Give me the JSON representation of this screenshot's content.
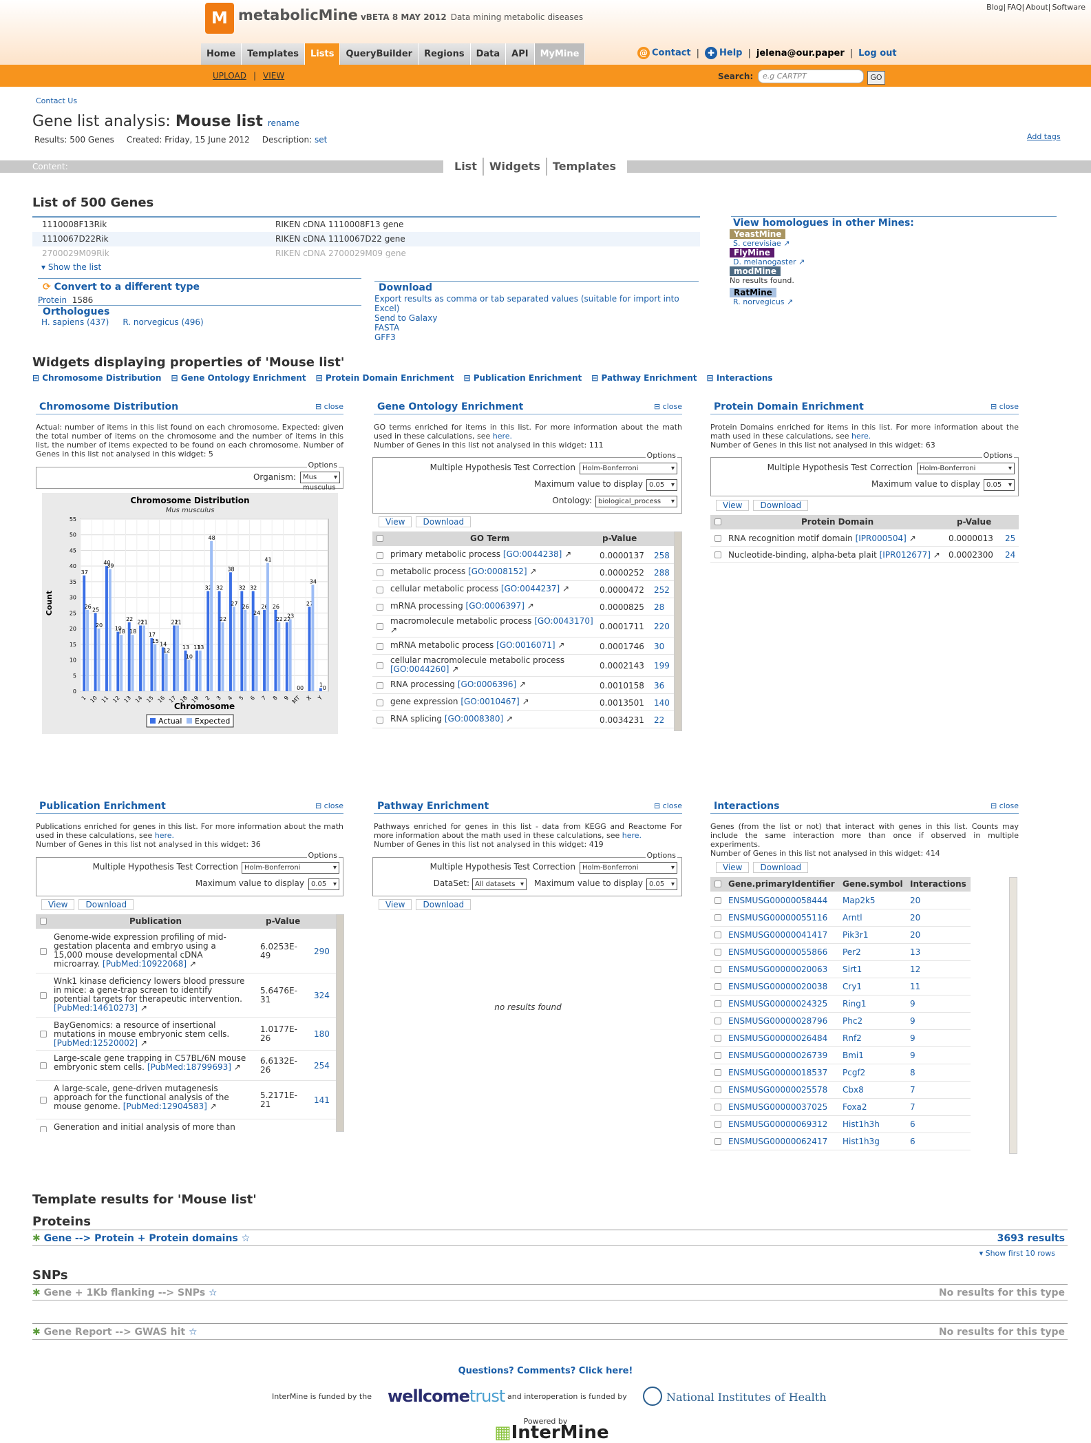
{
  "header": {
    "logo_text": "M",
    "brand": "metabolicMine",
    "version": "vBETA 8 MAY 2012",
    "tagline": "Data mining metabolic diseases",
    "top_links": [
      "Blog",
      "FAQ",
      "About",
      "Software"
    ],
    "tabs": [
      "Home",
      "Templates",
      "Lists",
      "QueryBuilder",
      "Regions",
      "Data",
      "API",
      "MyMine"
    ],
    "active_tab": "Lists",
    "contact": "Contact",
    "help": "Help",
    "user": "jelena@our.paper",
    "logout": "Log out",
    "sub_links": [
      "UPLOAD",
      "VIEW"
    ],
    "search_label": "Search:",
    "search_placeholder": "e.g CARTPT",
    "go": "GO"
  },
  "page": {
    "contact_us": "Contact Us",
    "title_prefix": "Gene list analysis: ",
    "title_name": "Mouse list",
    "rename": "rename",
    "results": "Results: 500 Genes",
    "created": "Created: Friday, 15 June 2012",
    "description_label": "Description:",
    "description_link": "set",
    "add_tags": "Add tags",
    "content_label": "Content:",
    "content_tabs": [
      "List",
      "Widgets",
      "Templates"
    ]
  },
  "list": {
    "heading": "List of 500 Genes",
    "rows": [
      {
        "id": "1110008F13Rik",
        "name": "RIKEN cDNA 1110008F13 gene"
      },
      {
        "id": "1110067D22Rik",
        "name": "RIKEN cDNA 1110067D22 gene"
      },
      {
        "id": "2700029M09Rik",
        "name": "RIKEN cDNA 2700029M09 gene"
      }
    ],
    "show_list": "Show the list",
    "convert_heading": "Convert to a different type",
    "convert_item": "Protein",
    "convert_count": "1586",
    "orthologues_heading": "Orthologues",
    "orthologues": [
      "H. sapiens (437)",
      "R. norvegicus (496)"
    ],
    "download_heading": "Download",
    "download_links": [
      "Export results as comma or tab separated values (suitable for import into Excel)",
      "Send to Galaxy",
      "FASTA",
      "GFF3"
    ],
    "homologues_heading": "View homologues in other Mines:",
    "mines": [
      {
        "name": "YeastMine",
        "color": "#a89461",
        "link": "S. cerevisiae"
      },
      {
        "name": "FlyMine",
        "color": "#5c1a6e",
        "link": "D. melanogaster"
      },
      {
        "name": "modMine",
        "color": "#4f6c84",
        "link": "No results found."
      },
      {
        "name": "RatMine",
        "color": "#aac3e3",
        "link": "R. norvegicus"
      }
    ]
  },
  "widgets": {
    "heading": "Widgets displaying properties of 'Mouse list'",
    "nav": [
      "Chromosome Distribution",
      "Gene Ontology Enrichment",
      "Protein Domain Enrichment",
      "Publication Enrichment",
      "Pathway Enrichment",
      "Interactions"
    ],
    "close": "close",
    "options": "Options",
    "view": "View",
    "download": "Download",
    "mhtc": "Multiple Hypothesis Test Correction",
    "holm": "Holm-Bonferroni",
    "maxval": "Maximum value to display",
    "maxsel": "0.05",
    "pvalue": "p-Value",
    "chrom": {
      "title": "Chromosome Distribution",
      "desc": "Actual: number of items in this list found on each chromosome. Expected: given the total number of items on the chromosome and the number of items in this list, the number of items expected to be found on each chromosome. Number of Genes in this list not analysed in this widget: 5",
      "organism_label": "Organism:",
      "organism": "Mus musculus"
    },
    "go": {
      "title": "Gene Ontology Enrichment",
      "desc_pre": "GO terms enriched for items in this list. For more information about the math used in these calculations, see ",
      "here": "here.",
      "desc_post": "Number of Genes in this list not analysed in this widget: 111",
      "ontology_label": "Ontology:",
      "ontology": "biological_process",
      "col": "GO Term",
      "rows": [
        {
          "t": "primary metabolic process",
          "id": "[GO:0044238]",
          "p": "0.0000137",
          "n": "258"
        },
        {
          "t": "metabolic process",
          "id": "[GO:0008152]",
          "p": "0.0000252",
          "n": "288"
        },
        {
          "t": "cellular metabolic process",
          "id": "[GO:0044237]",
          "p": "0.0000472",
          "n": "252"
        },
        {
          "t": "mRNA processing",
          "id": "[GO:0006397]",
          "p": "0.0000825",
          "n": "28"
        },
        {
          "t": "macromolecule metabolic process",
          "id": "[GO:0043170]",
          "p": "0.0001711",
          "n": "220"
        },
        {
          "t": "mRNA metabolic process",
          "id": "[GO:0016071]",
          "p": "0.0001746",
          "n": "30"
        },
        {
          "t": "cellular macromolecule metabolic process",
          "id": "[GO:0044260]",
          "p": "0.0002143",
          "n": "199"
        },
        {
          "t": "RNA processing",
          "id": "[GO:0006396]",
          "p": "0.0010158",
          "n": "36"
        },
        {
          "t": "gene expression",
          "id": "[GO:0010467]",
          "p": "0.0013501",
          "n": "140"
        },
        {
          "t": "RNA splicing",
          "id": "[GO:0008380]",
          "p": "0.0034231",
          "n": "22"
        }
      ]
    },
    "pd": {
      "title": "Protein Domain Enrichment",
      "desc": "Protein Domains enriched for items in this list. For more information about the math used in these calculations, see ",
      "here": "here.",
      "desc_post": "Number of Genes in this list not analysed in this widget: 63",
      "col": "Protein Domain",
      "rows": [
        {
          "t": "RNA recognition motif domain",
          "id": "[IPR000504]",
          "p": "0.0000013",
          "n": "25"
        },
        {
          "t": "Nucleotide-binding, alpha-beta plait",
          "id": "[IPR012677]",
          "p": "0.0002300",
          "n": "24"
        }
      ]
    },
    "pub": {
      "title": "Publication Enrichment",
      "desc": "Publications enriched for genes in this list. For more information about the math used in these calculations, see ",
      "here": "here.",
      "desc_post": "Number of Genes in this list not analysed in this widget: 36",
      "col": "Publication",
      "rows": [
        {
          "t": "Genome-wide expression profiling of mid-gestation placenta and embryo using a 15,000 mouse developmental cDNA microarray.",
          "id": "[PubMed:10922068]",
          "p": "6.0253E-49",
          "n": "290"
        },
        {
          "t": "Wnk1 kinase deficiency lowers blood pressure in mice: a gene-trap screen to identify potential targets for therapeutic intervention.",
          "id": "[PubMed:14610273]",
          "p": "5.6476E-31",
          "n": "324"
        },
        {
          "t": "BayGenomics: a resource of insertional mutations in mouse embryonic stem cells.",
          "id": "[PubMed:12520002]",
          "p": "1.0177E-26",
          "n": "180"
        },
        {
          "t": "Large-scale gene trapping in C57BL/6N mouse embryonic stem cells.",
          "id": "[PubMed:18799693]",
          "p": "6.6132E-26",
          "n": "254"
        },
        {
          "t": "A large-scale, gene-driven mutagenesis approach for the functional analysis of the mouse genome.",
          "id": "[PubMed:12904583]",
          "p": "5.2171E-21",
          "n": "141"
        },
        {
          "t": "Generation and initial analysis of more than",
          "id": "",
          "p": "",
          "n": ""
        }
      ]
    },
    "path": {
      "title": "Pathway Enrichment",
      "desc": "Pathways enriched for genes in this list - data from KEGG and Reactome For more information about the math used in these calculations, see ",
      "here": "here.",
      "desc_post": "Number of Genes in this list not analysed in this widget: 419",
      "dataset_label": "DataSet:",
      "dataset": "All datasets",
      "no_results": "no results found"
    },
    "inter": {
      "title": "Interactions",
      "desc": "Genes (from the list or not) that interact with genes in this list. Counts may include the same interaction more than once if observed in multiple experiments.",
      "desc_post": "Number of Genes in this list not analysed in this widget: 414",
      "cols": [
        "Gene.primaryIdentifier",
        "Gene.symbol",
        "Interactions"
      ],
      "rows": [
        [
          "ENSMUSG00000058444",
          "Map2k5",
          "20"
        ],
        [
          "ENSMUSG00000055116",
          "Arntl",
          "20"
        ],
        [
          "ENSMUSG00000041417",
          "Pik3r1",
          "20"
        ],
        [
          "ENSMUSG00000055866",
          "Per2",
          "13"
        ],
        [
          "ENSMUSG00000020063",
          "Sirt1",
          "12"
        ],
        [
          "ENSMUSG00000020038",
          "Cry1",
          "11"
        ],
        [
          "ENSMUSG00000024325",
          "Ring1",
          "9"
        ],
        [
          "ENSMUSG00000028796",
          "Phc2",
          "9"
        ],
        [
          "ENSMUSG00000026484",
          "Rnf2",
          "9"
        ],
        [
          "ENSMUSG00000026739",
          "Bmi1",
          "9"
        ],
        [
          "ENSMUSG00000018537",
          "Pcgf2",
          "8"
        ],
        [
          "ENSMUSG00000025578",
          "Cbx8",
          "7"
        ],
        [
          "ENSMUSG00000037025",
          "Foxa2",
          "7"
        ],
        [
          "ENSMUSG00000069312",
          "Hist1h3h",
          "6"
        ],
        [
          "ENSMUSG00000062417",
          "Hist1h3g",
          "6"
        ]
      ]
    }
  },
  "chart_data": {
    "type": "bar",
    "title": "Chromosome Distribution",
    "subtitle": "Mus musculus",
    "xlabel": "Chromosome",
    "ylabel": "Count",
    "ylim": [
      0,
      55
    ],
    "yticks": [
      0,
      5,
      10,
      15,
      20,
      25,
      30,
      35,
      40,
      45,
      50,
      55
    ],
    "categories": [
      "1",
      "10",
      "11",
      "12",
      "13",
      "14",
      "15",
      "16",
      "17",
      "18",
      "19",
      "2",
      "3",
      "4",
      "5",
      "6",
      "7",
      "8",
      "9",
      "MT",
      "X",
      "Y"
    ],
    "series": [
      {
        "name": "Actual",
        "color": "#3a6fe6",
        "values": [
          37,
          25,
          40,
          19,
          22,
          21,
          17,
          14,
          21,
          13,
          13,
          32,
          32,
          38,
          32,
          32,
          26,
          26,
          22,
          0,
          27,
          1
        ]
      },
      {
        "name": "Expected",
        "color": "#9dbdf5",
        "values": [
          26,
          20,
          39,
          18,
          18,
          21,
          15,
          12,
          21,
          10,
          13,
          48,
          22,
          27,
          26,
          24,
          41,
          22,
          23,
          0,
          34,
          0
        ]
      }
    ],
    "legend": "bottom"
  },
  "templates": {
    "heading": "Template results for 'Mouse list'",
    "proteins_heading": "Proteins",
    "t1": "Gene --> Protein + Protein domains",
    "t1_results": "3693 results",
    "show_rows": "Show first 10 rows",
    "snps_heading": "SNPs",
    "t2": "Gene + 1Kb flanking --> SNPs",
    "t3": "Gene Report --> GWAS hit",
    "no_results": "No results for this type"
  },
  "footer": {
    "questions": "Questions? Comments? Click here!",
    "funded1": "InterMine is funded by the",
    "wellcome": "wellcome",
    "trust": "trust",
    "funded2": "and interoperation is funded by",
    "nih": "National Institutes of Health",
    "powered": "Powered by",
    "intermine": "InterMine"
  }
}
